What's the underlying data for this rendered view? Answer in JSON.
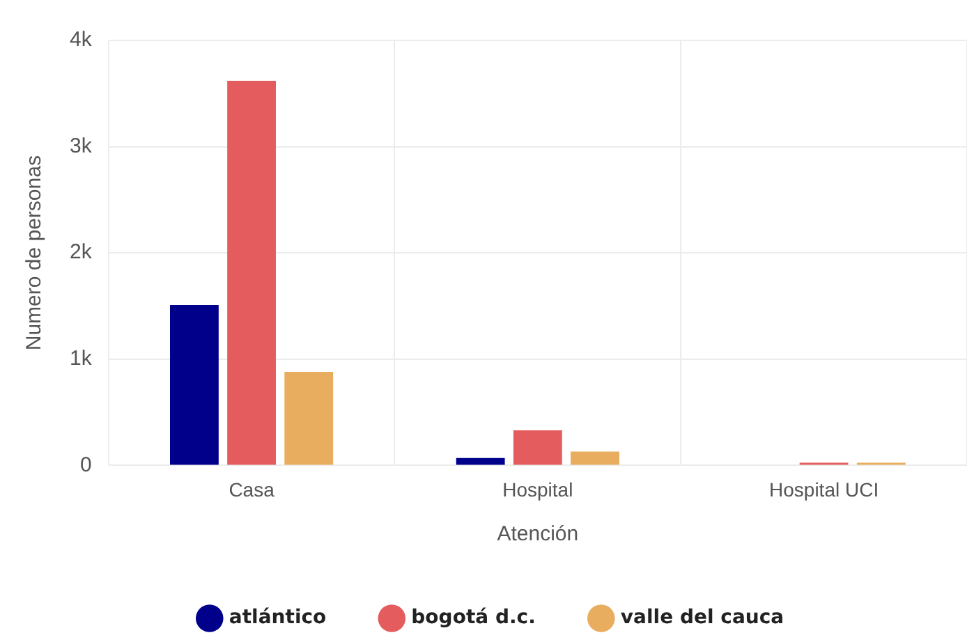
{
  "chart_data": {
    "type": "bar",
    "xlabel": "Atención",
    "ylabel": "Numero de personas",
    "categories": [
      "Casa",
      "Hospital",
      "Hospital UCI"
    ],
    "series": [
      {
        "name": "atlántico",
        "color": "#00008b",
        "values": [
          1510,
          70,
          null
        ]
      },
      {
        "name": "bogotá d.c.",
        "color": "#e55c5e",
        "values": [
          3620,
          330,
          25
        ]
      },
      {
        "name": "valle del cauca",
        "color": "#e8ad5e",
        "values": [
          880,
          130,
          25
        ]
      }
    ],
    "ylim": [
      0,
      4000
    ],
    "yticks": [
      0,
      {
        "value": 1000,
        "label": "1k"
      },
      {
        "value": 2000,
        "label": "2k"
      },
      {
        "value": 3000,
        "label": "3k"
      },
      {
        "value": 4000,
        "label": "4k"
      }
    ],
    "grid": true,
    "legend": "bottom",
    "marker": "circle"
  }
}
